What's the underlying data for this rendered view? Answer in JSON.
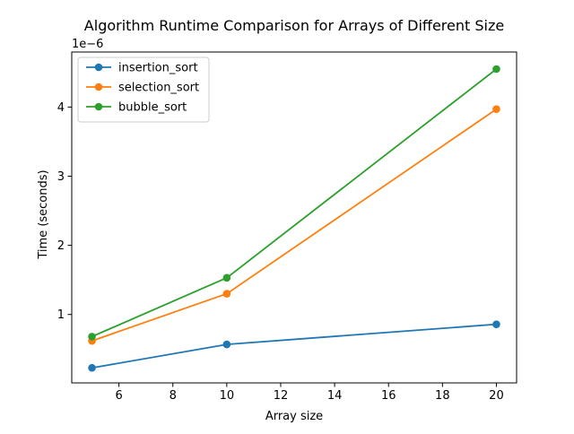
{
  "chart_data": {
    "type": "line",
    "title": "Algorithm Runtime Comparison for Arrays of Different Size",
    "xlabel": "Array size",
    "ylabel": "Time (seconds)",
    "y_offset_label": "1e−6",
    "x": [
      5,
      10,
      20
    ],
    "xlim": [
      4.25,
      20.75
    ],
    "ylim": [
      1.05e-08,
      4.7965e-06
    ],
    "xticks": [
      6,
      8,
      10,
      12,
      14,
      16,
      18,
      20
    ],
    "xtick_labels": [
      "6",
      "8",
      "10",
      "12",
      "14",
      "16",
      "18",
      "20"
    ],
    "yticks": [
      1e-06,
      2e-06,
      3e-06,
      4e-06
    ],
    "ytick_labels": [
      "1",
      "2",
      "3",
      "4"
    ],
    "grid": false,
    "legend_position": "upper-left",
    "series": [
      {
        "name": "insertion_sort",
        "color": "#1f77b4",
        "values": [
          2.28e-07,
          5.67e-07,
          8.58e-07
        ]
      },
      {
        "name": "selection_sort",
        "color": "#ff7f0e",
        "values": [
          6.18e-07,
          1.3e-06,
          3.97e-06
        ]
      },
      {
        "name": "bubble_sort",
        "color": "#2ca02c",
        "values": [
          6.8e-07,
          1.53e-06,
          4.55e-06
        ]
      }
    ]
  }
}
